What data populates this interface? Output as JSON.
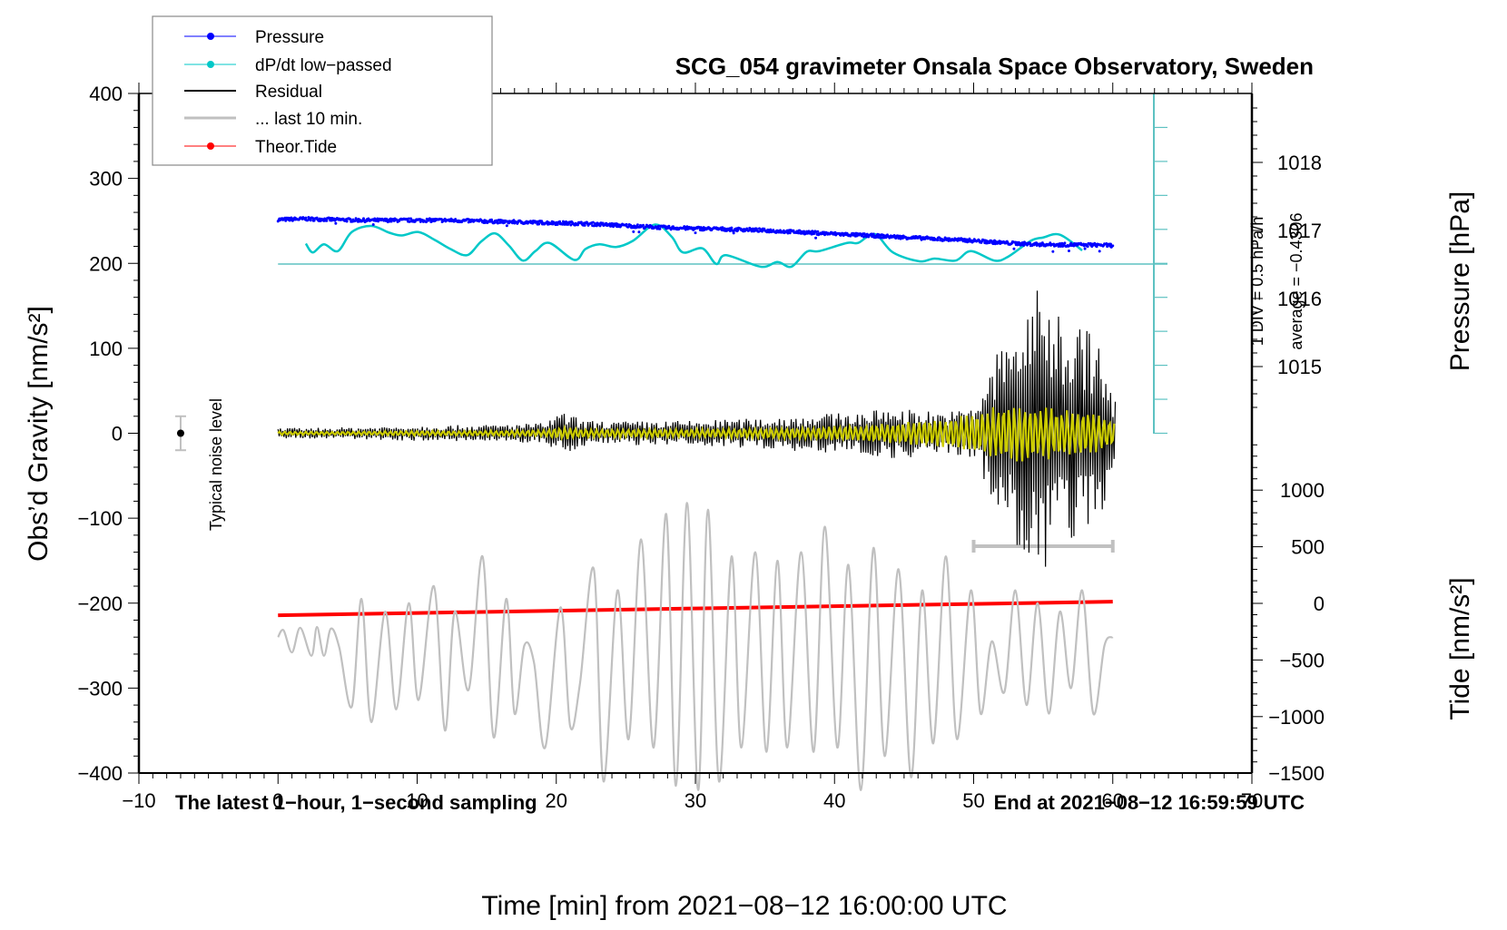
{
  "chart_data": {
    "type": "line",
    "title": "SCG_054 gravimeter Onsala Space Observatory, Sweden",
    "xlabel": "Time [min] from 2021−08−12 16:00:00 UTC",
    "ylabel_left": "Obs’d Gravity [nm/s²]",
    "ylabel_right_top": "Pressure [hPa]",
    "ylabel_right_bottom": "Tide [nm/s²]",
    "xlim": [
      -10,
      70
    ],
    "ylim_left": [
      -400,
      400
    ],
    "x_ticks": [
      -10,
      0,
      10,
      20,
      30,
      40,
      50,
      60,
      70
    ],
    "x_tick_labels": [
      "−10",
      "0",
      "10",
      "20",
      "30",
      "40",
      "50",
      "60",
      "70"
    ],
    "y_left_ticks": [
      400,
      300,
      200,
      100,
      0,
      -100,
      -200,
      -300,
      -400
    ],
    "y_left_tick_labels": [
      "400",
      "300",
      "200",
      "100",
      "0",
      "−100",
      "−200",
      "−300",
      "−400"
    ],
    "pressure_axis": {
      "ticks": [
        1018,
        1017,
        1016,
        1015
      ],
      "tick_labels": [
        "1018",
        "1017",
        "1016",
        "1015"
      ]
    },
    "tide_axis": {
      "ticks": [
        1000,
        500,
        0,
        -500,
        -1000,
        -1500
      ],
      "tick_labels": [
        "1000",
        "500",
        "0",
        "−500",
        "−1000",
        "−1500"
      ]
    },
    "grid": false,
    "legend_position": "top-left",
    "legend": [
      {
        "label": "Pressure",
        "color": "#0000ff",
        "marker": true
      },
      {
        "label": "dP/dt low−passed",
        "color": "#00c8c8",
        "marker": true
      },
      {
        "label": "Residual",
        "color": "#000000",
        "marker": false
      },
      {
        "label": "... last 10 min.",
        "color": "#c0c0c0",
        "marker": false
      },
      {
        "label": "Theor.Tide",
        "color": "#ff0000",
        "marker": true
      }
    ],
    "annotations": {
      "bottom_left": "The latest 1−hour, 1−second sampling",
      "bottom_right": "End at 2021−08−12 16:59:59 UTC",
      "noise_label": "Typical noise level",
      "scale_div": "1 DIV = 0.5 hPa/h",
      "scale_avg": "average = −0.4306"
    },
    "noise_bar": {
      "x": -7,
      "y": 0,
      "halfwidth": 20
    },
    "last10_bar": {
      "x_from": 50,
      "x_to": 60,
      "y": -133
    },
    "series": [
      {
        "name": "Pressure",
        "axis": "pressure_hPa",
        "color": "#0000ff",
        "x": [
          0,
          2,
          4,
          6,
          8,
          10,
          12,
          14,
          16,
          18,
          20,
          22,
          24,
          26,
          28,
          30,
          32,
          34,
          36,
          38,
          40,
          42,
          44,
          46,
          48,
          50,
          52,
          54,
          56,
          58,
          60
        ],
        "values": [
          1017.16,
          1017.17,
          1017.16,
          1017.15,
          1017.15,
          1017.15,
          1017.15,
          1017.14,
          1017.13,
          1017.12,
          1017.11,
          1017.1,
          1017.08,
          1017.06,
          1017.04,
          1017.03,
          1017.02,
          1017.01,
          1016.99,
          1016.97,
          1016.95,
          1016.93,
          1016.91,
          1016.89,
          1016.87,
          1016.85,
          1016.82,
          1016.8,
          1016.79,
          1016.79,
          1016.78
        ]
      },
      {
        "name": "dP/dt low-passed",
        "axis": "dPdt_hPa_per_h",
        "scale_hPa_per_h_per_div": 0.5,
        "baseline_average": -0.4306,
        "color": "#00c8c8",
        "x": [
          2,
          2.5,
          3.3,
          4.3,
          5.3,
          6.7,
          8,
          8.9,
          10.1,
          11.3,
          12.4,
          13.6,
          14.6,
          15.6,
          16.6,
          17.6,
          18.5,
          19.5,
          21.3,
          22.1,
          23.1,
          24.3,
          25.5,
          27.1,
          28.3,
          29.1,
          30.5,
          31.5,
          32.2,
          34.7,
          35.9,
          36.9,
          38.0,
          38.9,
          40.9,
          41.7,
          42.9,
          44.2,
          46.1,
          47.2,
          48.7,
          49.8,
          51.5,
          52.5,
          54.1,
          55.0,
          56.2,
          57.8
        ],
        "values": [
          -0.13,
          -0.26,
          -0.14,
          -0.24,
          0.04,
          0.13,
          0.03,
          -0.01,
          0.04,
          -0.08,
          -0.21,
          -0.3,
          -0.1,
          0.02,
          -0.16,
          -0.38,
          -0.24,
          -0.12,
          -0.37,
          -0.21,
          -0.14,
          -0.18,
          -0.09,
          0.15,
          -0.03,
          -0.26,
          -0.2,
          -0.43,
          -0.3,
          -0.47,
          -0.4,
          -0.47,
          -0.25,
          -0.24,
          -0.12,
          -0.12,
          0.01,
          -0.26,
          -0.39,
          -0.35,
          -0.38,
          -0.24,
          -0.38,
          -0.32,
          -0.09,
          -0.04,
          0.0,
          -0.23
        ]
      },
      {
        "name": "Residual",
        "axis": "gravity_nm_s2",
        "color": "#000000",
        "envelope_x": [
          0,
          5,
          10,
          15,
          19,
          20.5,
          22,
          25,
          30,
          35,
          38,
          42,
          44,
          46,
          48,
          50,
          51,
          52,
          53,
          54,
          55,
          56,
          57,
          58,
          59,
          60
        ],
        "envelope_amplitude": [
          6,
          7,
          9,
          10,
          12,
          25,
          15,
          14,
          15,
          18,
          22,
          25,
          30,
          28,
          25,
          30,
          70,
          110,
          130,
          160,
          175,
          150,
          135,
          130,
          110,
          40
        ],
        "filtered_color": "#cccc00",
        "filtered_envelope_amplitude": [
          2,
          2,
          3,
          3,
          4,
          8,
          5,
          5,
          5,
          6,
          7,
          10,
          12,
          15,
          18,
          25,
          30,
          33,
          35,
          35,
          33,
          32,
          30,
          28,
          25,
          15
        ]
      },
      {
        "name": "... last 10 min.",
        "axis": "gravity_nm_s2",
        "color": "#c0c0c0",
        "x": [
          0,
          0.4,
          1.0,
          1.6,
          2.4,
          2.8,
          3.3,
          3.8,
          4.4,
          5.3,
          6.0,
          6.7,
          7.7,
          8.5,
          9.4,
          10.1,
          11.2,
          12.0,
          12.7,
          13.7,
          14.7,
          15.5,
          16.4,
          17.0,
          17.7,
          18.4,
          19.2,
          20.3,
          21.0,
          21.7,
          22.7,
          23.4,
          24.4,
          25.2,
          26.1,
          27.0,
          27.9,
          28.6,
          29.4,
          30.2,
          30.9,
          31.7,
          32.6,
          33.3,
          34.3,
          35.1,
          35.9,
          36.6,
          37.6,
          38.5,
          39.3,
          40.2,
          41.0,
          41.9,
          42.8,
          43.6,
          44.6,
          45.5,
          46.3,
          47.1,
          48.0,
          48.8,
          49.8,
          50.5,
          51.3,
          52.2,
          53.0,
          53.8,
          54.6,
          55.4,
          56.2,
          57.0,
          57.8,
          58.6,
          59.4,
          60.0
        ],
        "values": [
          -240,
          -232,
          -258,
          -229,
          -262,
          -228,
          -262,
          -230,
          -252,
          -322,
          -195,
          -340,
          -210,
          -325,
          -200,
          -314,
          -180,
          -350,
          -210,
          -302,
          -145,
          -358,
          -195,
          -330,
          -250,
          -270,
          -370,
          -205,
          -345,
          -295,
          -160,
          -410,
          -185,
          -360,
          -125,
          -370,
          -95,
          -415,
          -82,
          -420,
          -90,
          -410,
          -145,
          -370,
          -140,
          -375,
          -150,
          -370,
          -140,
          -375,
          -110,
          -370,
          -155,
          -420,
          -135,
          -380,
          -160,
          -405,
          -185,
          -365,
          -145,
          -360,
          -185,
          -330,
          -245,
          -305,
          -185,
          -320,
          -200,
          -330,
          -210,
          -300,
          -185,
          -330,
          -250,
          -240
        ]
      },
      {
        "name": "Theor.Tide",
        "axis": "tide_nm_s2",
        "color": "#ff0000",
        "x": [
          0,
          10,
          20,
          30,
          40,
          50,
          60
        ],
        "values": [
          -105,
          -85,
          -65,
          -45,
          -25,
          -5,
          15
        ]
      }
    ]
  }
}
